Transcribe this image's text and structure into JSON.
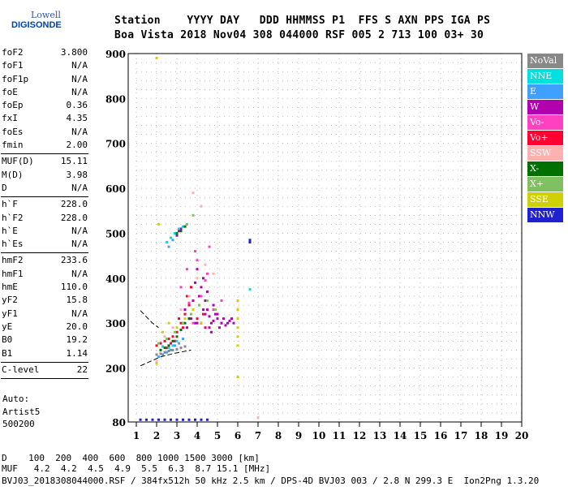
{
  "logo": {
    "top": "Lowell",
    "bottom": "DIGISONDE"
  },
  "header": {
    "line1": "Station    YYYY DAY   DDD HHMMSS P1  FFS S AXN PPS IGA PS",
    "line2": "Boa Vista 2018 Nov04 308 044000 RSF 005 2 713 100 03+ 30"
  },
  "params": [
    {
      "k": "foF2",
      "v": "3.800"
    },
    {
      "k": "foF1",
      "v": "N/A"
    },
    {
      "k": "foF1p",
      "v": "N/A"
    },
    {
      "k": "foE",
      "v": "N/A"
    },
    {
      "k": "foEp",
      "v": "0.36"
    },
    {
      "k": "fxI",
      "v": "4.35"
    },
    {
      "k": "foEs",
      "v": "N/A"
    },
    {
      "k": "fmin",
      "v": "2.00"
    },
    {
      "sep": true
    },
    {
      "k": "MUF(D)",
      "v": "15.11"
    },
    {
      "k": "M(D)",
      "v": "3.98"
    },
    {
      "k": "D",
      "v": "N/A"
    },
    {
      "sep": true
    },
    {
      "k": "h`F",
      "v": "228.0"
    },
    {
      "k": "h`F2",
      "v": "228.0"
    },
    {
      "k": "h`E",
      "v": "N/A"
    },
    {
      "k": "h`Es",
      "v": "N/A"
    },
    {
      "sep": true
    },
    {
      "k": "hmF2",
      "v": "233.6"
    },
    {
      "k": "hmF1",
      "v": "N/A"
    },
    {
      "k": "hmE",
      "v": "110.0"
    },
    {
      "k": "yF2",
      "v": "15.8"
    },
    {
      "k": "yF1",
      "v": "N/A"
    },
    {
      "k": "yE",
      "v": "20.0"
    },
    {
      "k": "B0",
      "v": "19.2"
    },
    {
      "k": "B1",
      "v": "1.14"
    },
    {
      "sep": true
    },
    {
      "k": "C-level",
      "v": "22"
    },
    {
      "sep": true
    }
  ],
  "auto": {
    "line1": "Auto:",
    "line2": "Artist5",
    "line3": "500200"
  },
  "legend": [
    {
      "label": "NoVal",
      "color": "#888888"
    },
    {
      "label": "NNE",
      "color": "#00e0e0"
    },
    {
      "label": "E",
      "color": "#40a0ff"
    },
    {
      "label": "W",
      "color": "#b000b0"
    },
    {
      "label": "Vo-",
      "color": "#ff40c0"
    },
    {
      "label": "Vo+",
      "color": "#ff0030"
    },
    {
      "label": "SSW",
      "color": "#ffb0b0"
    },
    {
      "label": "X-",
      "color": "#007000"
    },
    {
      "label": "X+",
      "color": "#80c060"
    },
    {
      "label": "SSE",
      "color": "#d0d000"
    },
    {
      "label": "NNW",
      "color": "#2020d0"
    }
  ],
  "bottom": {
    "line1": "D    100  200  400  600  800 1000 1500 3000 [km]",
    "line2": "MUF   4.2  4.2  4.5  4.9  5.5  6.3  8.7 15.1 [MHz]",
    "line3": "BVJ03_2018308044000.RSF / 384fx512h 50 kHz 2.5 km / DPS-4D BVJ03 003 / 2.8 N 299.3 E  Ion2Png 1.3.20"
  },
  "chart_data": {
    "type": "scatter",
    "xlim": [
      1,
      20
    ],
    "ylim": [
      80,
      900
    ],
    "x_ticks": [
      1,
      2,
      3,
      4,
      5,
      6,
      7,
      8,
      9,
      10,
      11,
      12,
      13,
      14,
      15,
      16,
      17,
      18,
      19,
      20
    ],
    "y_ticks": [
      80,
      200,
      300,
      400,
      500,
      600,
      700,
      800,
      900
    ],
    "grid": true,
    "legend_position": "right",
    "series": [
      {
        "name": "W",
        "color": "#b000b0",
        "x": [
          3.4,
          3.6,
          3.8,
          4.0,
          4.2,
          4.4,
          4.6,
          4.8,
          5.0,
          5.2,
          5.4,
          5.6,
          5.8,
          4.1,
          4.3,
          4.5,
          4.7,
          3.9,
          3.7,
          4.9,
          5.1,
          5.3,
          4.4,
          4.2,
          4.6,
          3.5,
          3.3,
          4.8,
          5.5,
          5.7,
          4.0,
          4.5,
          3.9,
          4.3,
          4.7,
          5.0,
          5.2,
          3.0,
          3.1,
          3.2,
          3.0
        ],
        "y": [
          330,
          310,
          350,
          300,
          380,
          320,
          290,
          340,
          310,
          300,
          295,
          305,
          300,
          360,
          400,
          330,
          280,
          300,
          310,
          320,
          290,
          310,
          350,
          300,
          315,
          290,
          300,
          305,
          300,
          310,
          420,
          370,
          390,
          330,
          300,
          320,
          300,
          500,
          505,
          510,
          495
        ]
      },
      {
        "name": "Vo+",
        "color": "#ff0030",
        "x": [
          2.0,
          2.2,
          2.4,
          2.6,
          2.8,
          3.0,
          3.2,
          3.4,
          3.6,
          3.8,
          4.0,
          4.2,
          4.4,
          3.1,
          3.3,
          2.9,
          3.5,
          3.7,
          4.1,
          4.3,
          2.5,
          2.7
        ],
        "y": [
          250,
          255,
          260,
          265,
          270,
          280,
          300,
          320,
          340,
          330,
          310,
          300,
          290,
          310,
          290,
          260,
          360,
          380,
          340,
          320,
          245,
          255
        ]
      },
      {
        "name": "Vo-",
        "color": "#ff40c0",
        "x": [
          3.2,
          3.5,
          3.8,
          4.0,
          4.2,
          4.5,
          4.8,
          5.2,
          3.9,
          4.4,
          4.6,
          3.6
        ],
        "y": [
          380,
          420,
          300,
          440,
          360,
          410,
          330,
          350,
          460,
          395,
          470,
          345
        ]
      },
      {
        "name": "NNE",
        "color": "#00e0e0",
        "x": [
          2.2,
          2.4,
          2.6,
          2.8,
          3.0,
          2.5,
          2.7,
          2.9,
          3.1,
          3.3,
          2.3,
          6.6
        ],
        "y": [
          240,
          235,
          245,
          250,
          260,
          480,
          490,
          500,
          510,
          515,
          248,
          375
        ]
      },
      {
        "name": "E",
        "color": "#40a0ff",
        "x": [
          2.1,
          2.3,
          2.5,
          2.7,
          2.9,
          3.1,
          3.3,
          2.6,
          2.8,
          3.0
        ],
        "y": [
          225,
          230,
          235,
          240,
          250,
          255,
          265,
          470,
          485,
          500
        ]
      },
      {
        "name": "X-",
        "color": "#007000",
        "x": [
          2.2,
          2.4,
          2.6,
          2.8,
          3.0,
          3.2,
          3.4,
          3.6,
          3.0,
          3.2,
          3.4
        ],
        "y": [
          240,
          245,
          250,
          260,
          270,
          285,
          300,
          310,
          500,
          505,
          515
        ]
      },
      {
        "name": "X+",
        "color": "#80c060",
        "x": [
          2.1,
          2.5,
          2.9,
          3.3,
          3.7,
          4.1,
          4.5,
          4.9,
          3.5,
          3.8
        ],
        "y": [
          255,
          265,
          280,
          300,
          320,
          340,
          350,
          330,
          520,
          540
        ]
      },
      {
        "name": "SSE",
        "color": "#d0d000",
        "x": [
          2.0,
          2.1,
          2.3,
          2.6,
          3.0,
          3.4,
          3.8,
          4.2,
          6.0,
          6.0,
          6.0,
          6.0,
          6.0,
          6.0,
          2.0,
          6.0
        ],
        "y": [
          890,
          520,
          280,
          300,
          290,
          310,
          330,
          300,
          250,
          270,
          290,
          310,
          330,
          350,
          210,
          180
        ]
      },
      {
        "name": "SSW",
        "color": "#ffb0b0",
        "x": [
          2.4,
          2.8,
          3.2,
          3.6,
          4.0,
          4.4,
          4.8,
          3.8,
          4.2,
          7.0,
          2.0
        ],
        "y": [
          270,
          290,
          330,
          360,
          400,
          430,
          410,
          590,
          560,
          90,
          215
        ]
      },
      {
        "name": "NNW",
        "color": "#2020d0",
        "x": [
          1.2,
          1.5,
          1.8,
          2.1,
          2.4,
          2.7,
          3.0,
          3.3,
          3.6,
          3.9,
          4.2,
          4.5,
          6.6,
          6.6
        ],
        "y": [
          85,
          85,
          85,
          85,
          85,
          85,
          85,
          85,
          85,
          85,
          85,
          85,
          485,
          480
        ]
      },
      {
        "name": "NoVal",
        "color": "#888888",
        "x": [
          2.0,
          2.2,
          2.4,
          2.6,
          2.8,
          3.0,
          3.2,
          3.4
        ],
        "y": [
          230,
          232,
          235,
          238,
          240,
          242,
          245,
          248
        ]
      }
    ],
    "trace_lines": [
      {
        "points": [
          [
            1.2,
            328
          ],
          [
            1.8,
            300
          ],
          [
            2.1,
            290
          ]
        ]
      },
      {
        "points": [
          [
            1.2,
            205
          ],
          [
            2.2,
            225
          ],
          [
            2.8,
            232
          ],
          [
            3.7,
            240
          ]
        ]
      }
    ]
  }
}
